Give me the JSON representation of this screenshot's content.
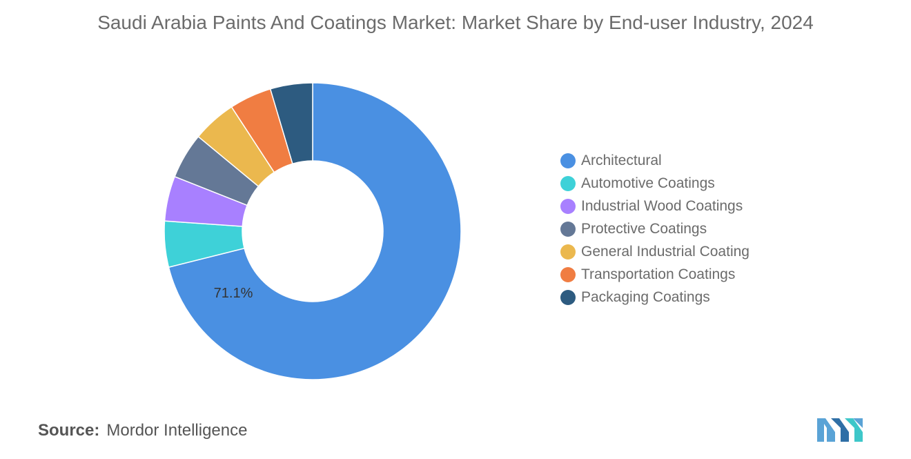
{
  "title": "Saudi Arabia Paints And Coatings Market: Market Share by End-user Industry, 2024",
  "chart_data": {
    "type": "pie",
    "variant": "donut",
    "title": "Saudi Arabia Paints And Coatings Market: Market Share by End-user Industry, 2024",
    "legend_position": "right",
    "slices": [
      {
        "name": "Architectural",
        "value": 71.1,
        "color": "#4a90e2",
        "label": "71.1%"
      },
      {
        "name": "Automotive Coatings",
        "value": 5.0,
        "color": "#3ed1d8"
      },
      {
        "name": "Industrial Wood Coatings",
        "value": 4.9,
        "color": "#a880ff"
      },
      {
        "name": "Protective Coatings",
        "value": 5.0,
        "color": "#647896"
      },
      {
        "name": "General Industrial Coating",
        "value": 4.8,
        "color": "#ebb84e"
      },
      {
        "name": "Transportation Coatings",
        "value": 4.6,
        "color": "#f07d42"
      },
      {
        "name": "Packaging Coatings",
        "value": 4.6,
        "color": "#2d5b80"
      }
    ]
  },
  "source": {
    "label": "Source:",
    "text": "Mordor Intelligence"
  }
}
